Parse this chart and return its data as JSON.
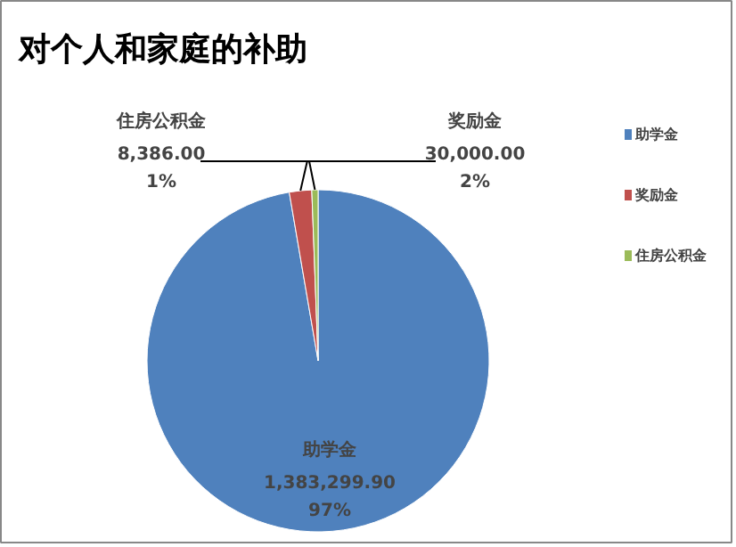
{
  "chart_data": {
    "type": "pie",
    "title": "对个人和家庭的补助",
    "categories": [
      "助学金",
      "奖励金",
      "住房公积金"
    ],
    "values": [
      1383299.9,
      30000.0,
      8386.0
    ],
    "colors": [
      "#4f81bd",
      "#c0504d",
      "#9bbb59"
    ],
    "value_labels": [
      "1,383,299.90\n97%",
      "30,000.00\n2%",
      "8,386.00\n1%"
    ],
    "legend": "right"
  }
}
